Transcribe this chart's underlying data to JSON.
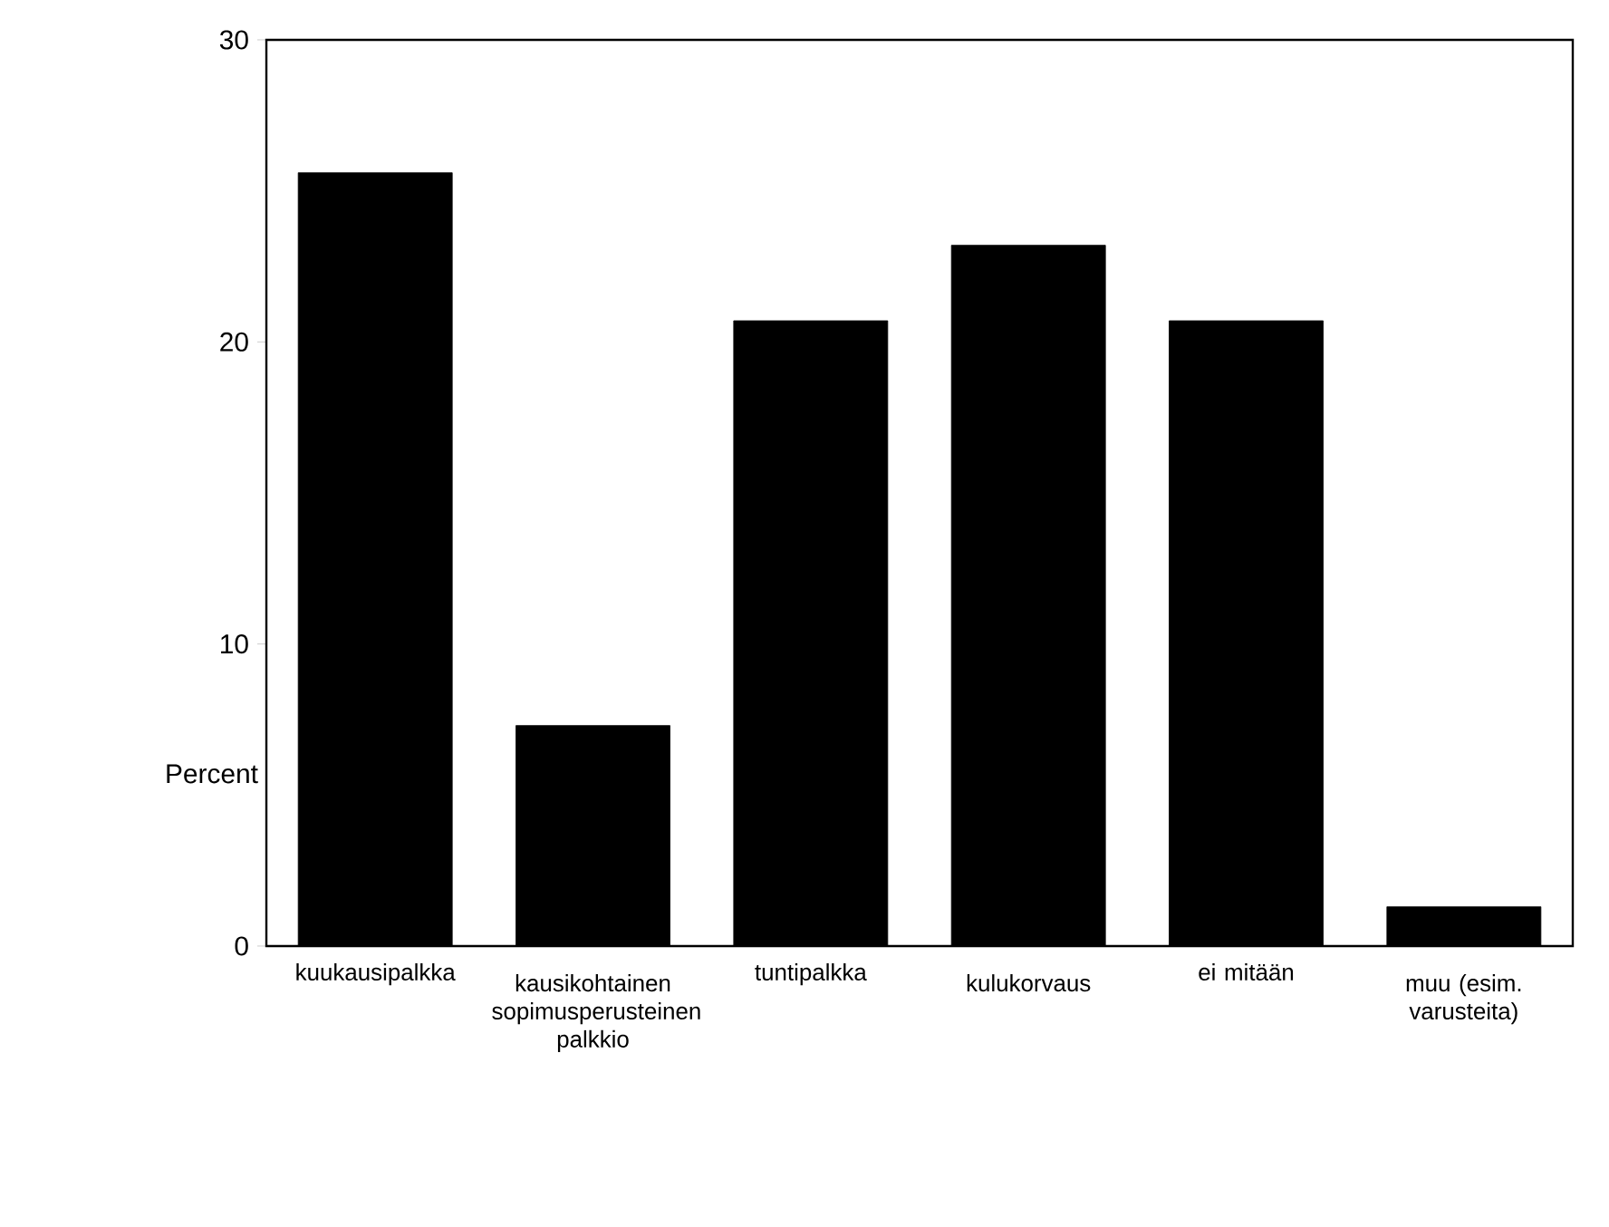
{
  "chart_data": {
    "type": "bar",
    "ylabel": "Percent",
    "categories": [
      "kuukausipalkka",
      "kausikohtainen sopimusperusteinen palkkio",
      "tuntipalkka",
      "kulukorvaus",
      "ei mitään",
      "muu (esim. varusteita)"
    ],
    "values": [
      25.6,
      7.3,
      20.7,
      23.2,
      20.7,
      1.3
    ],
    "color": "#000000",
    "ylim": [
      0,
      30
    ],
    "yticks": [
      0,
      10,
      20,
      30
    ]
  }
}
